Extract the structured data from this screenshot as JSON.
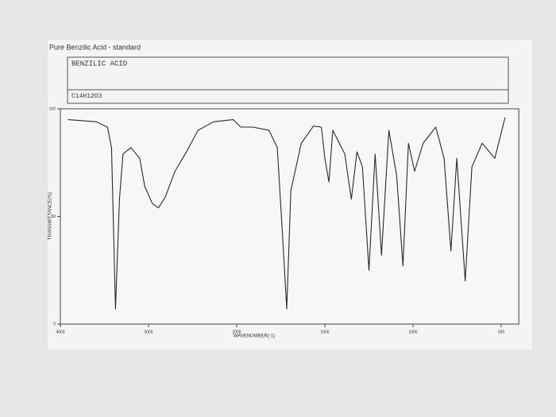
{
  "chart_data": {
    "type": "line",
    "title": "Pure Benzilic Acid - standard",
    "compound": "BENZILIC ACID",
    "formula": "C14H12O3",
    "x_label": "WAVENUMBER(-1)",
    "y_label": "TRANSMITTANCE(%)",
    "color": "#2a2a2a",
    "xlim": [
      4000,
      400
    ],
    "xticks": [
      4000,
      3000,
      2000,
      1500,
      1000,
      500
    ],
    "ylim": [
      0,
      100
    ],
    "yticks": [
      0,
      50,
      100
    ],
    "x": [
      3914,
      3595,
      3466,
      3420,
      3375,
      3330,
      3290,
      3200,
      3100,
      3043,
      2957,
      2888,
      2810,
      2700,
      2570,
      2440,
      2260,
      2040,
      1977,
      1908,
      1817,
      1770,
      1739,
      1716,
      1693,
      1634,
      1565,
      1520,
      1500,
      1477,
      1455,
      1387,
      1350,
      1318,
      1287,
      1250,
      1215,
      1179,
      1137,
      1093,
      1057,
      1026,
      991,
      943,
      871,
      824,
      785,
      752,
      704,
      666,
      608,
      536,
      478
    ],
    "values": [
      95,
      94,
      91.5,
      82,
      7,
      58,
      79,
      82,
      77,
      64,
      56,
      54,
      59,
      71,
      80,
      90,
      94,
      95,
      91.5,
      91.5,
      90,
      82,
      40,
      7,
      62,
      84,
      92,
      91.5,
      77,
      66,
      90,
      79,
      58,
      80,
      73,
      25,
      79,
      32,
      90,
      69,
      27,
      84,
      71,
      84,
      91.5,
      77,
      34,
      77,
      20,
      73,
      84,
      77,
      96
    ]
  }
}
